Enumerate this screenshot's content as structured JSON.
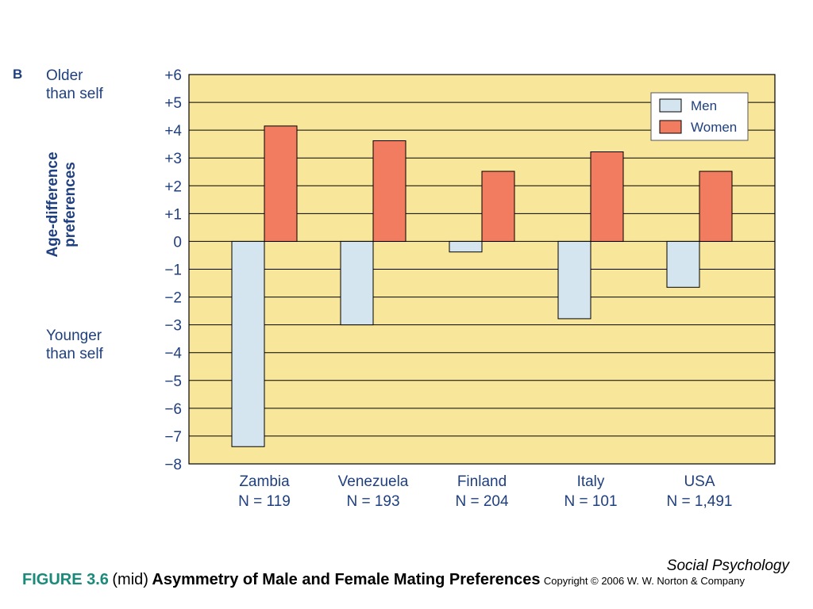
{
  "panel_letter": "B",
  "older_note": [
    "Older",
    "than self"
  ],
  "younger_note": [
    "Younger",
    "than self"
  ],
  "chart_data": {
    "type": "bar",
    "ylabel": [
      "Age-difference",
      "preferences"
    ],
    "ylim": [
      -8,
      6
    ],
    "y_ticks": [
      "+6",
      "+5",
      "+4",
      "+3",
      "+2",
      "+1",
      "0",
      "−1",
      "−2",
      "−3",
      "−4",
      "−5",
      "−6",
      "−7",
      "−8"
    ],
    "y_tick_values": [
      6,
      5,
      4,
      3,
      2,
      1,
      0,
      -1,
      -2,
      -3,
      -4,
      -5,
      -6,
      -7,
      -8
    ],
    "categories": [
      "Zambia",
      "Venezuela",
      "Finland",
      "Italy",
      "USA"
    ],
    "category_sublabels": [
      "N = 119",
      "N = 193",
      "N = 204",
      "N = 101",
      "N = 1,491"
    ],
    "series": [
      {
        "name": "Men",
        "color": "#d5e5f0",
        "values": [
          -7.38,
          -3.0,
          -0.38,
          -2.78,
          -1.65
        ]
      },
      {
        "name": "Women",
        "color": "#f27c60",
        "values": [
          4.15,
          3.62,
          2.52,
          3.22,
          2.52
        ]
      }
    ],
    "grid": true,
    "legend_position": "top-right",
    "plot_background": "#f8e69a"
  },
  "book_title": "Social Psychology",
  "caption": {
    "figure": "FIGURE 3.6",
    "mid": "(mid)",
    "title": "Asymmetry of Male and Female Mating Preferences",
    "copyright": "Copyright © 2006 W. W. Norton & Company"
  }
}
